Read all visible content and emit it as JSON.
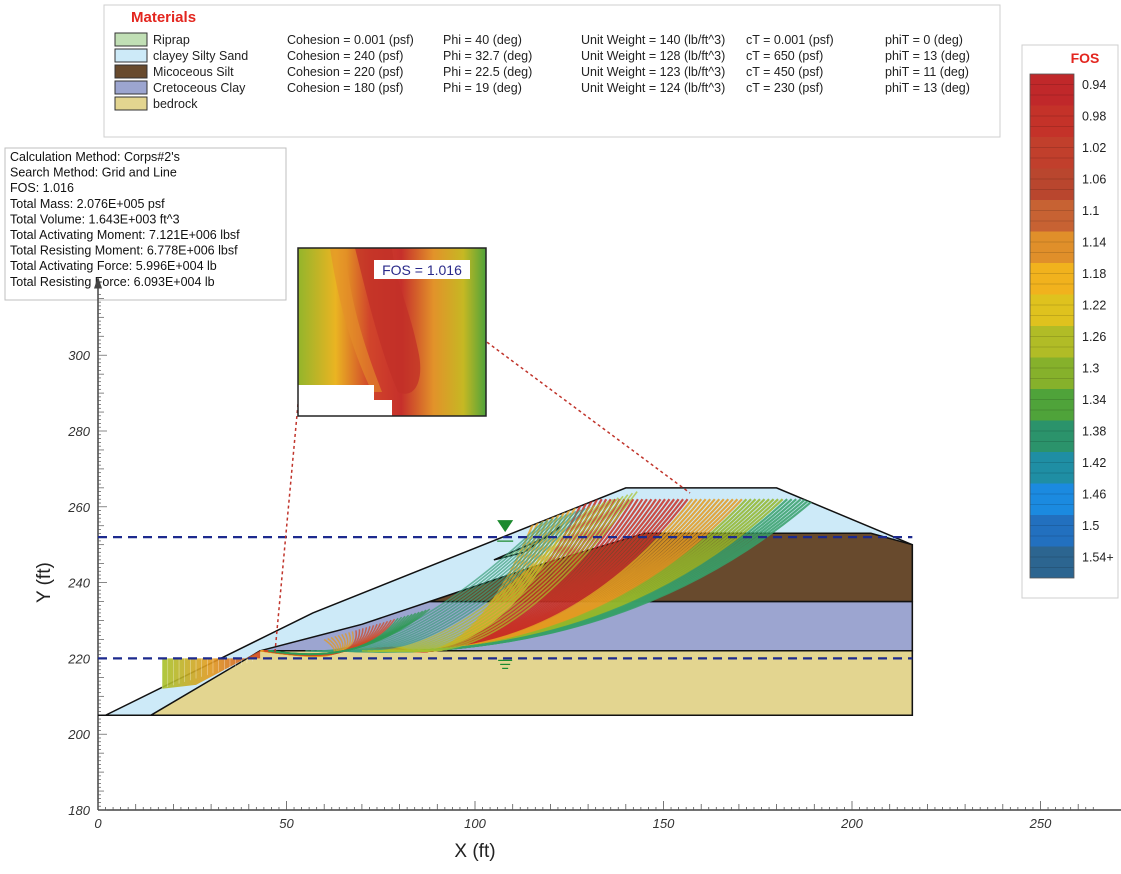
{
  "materials": {
    "title": "Materials",
    "items": [
      {
        "name": "Riprap",
        "color": "#c1dfb5",
        "cohesion": "Cohesion = 0.001 (psf)",
        "phi": "Phi = 40 (deg)",
        "unit_weight": "Unit Weight = 140 (lb/ft^3)",
        "ct": "cT = 0.001 (psf)",
        "phit": "phiT = 0 (deg)"
      },
      {
        "name": "clayey Silty Sand",
        "color": "#cdeaf8",
        "cohesion": "Cohesion = 240 (psf)",
        "phi": "Phi = 32.7 (deg)",
        "unit_weight": "Unit Weight = 128 (lb/ft^3)",
        "ct": "cT = 650 (psf)",
        "phit": "phiT = 13 (deg)"
      },
      {
        "name": "Micoceous Silt",
        "color": "#684a2d",
        "cohesion": "Cohesion = 220 (psf)",
        "phi": "Phi = 22.5 (deg)",
        "unit_weight": "Unit Weight = 123 (lb/ft^3)",
        "ct": "cT = 450 (psf)",
        "phit": "phiT = 11 (deg)"
      },
      {
        "name": "Cretoceous Clay",
        "color": "#9ca5d0",
        "cohesion": "Cohesion = 180 (psf)",
        "phi": "Phi = 19 (deg)",
        "unit_weight": "Unit Weight = 124 (lb/ft^3)",
        "ct": "cT = 230 (psf)",
        "phit": "phiT = 13 (deg)"
      },
      {
        "name": "bedrock",
        "color": "#e3d590"
      }
    ]
  },
  "info": {
    "lines": [
      "Calculation Method: Corps#2's",
      "Search Method: Grid and Line",
      "FOS: 1.016",
      "Total Mass: 2.076E+005 psf",
      "Total Volume: 1.643E+003 ft^3",
      "Total Activating Moment: 7.121E+006 lbsf",
      "Total Resisting Moment: 6.778E+006 lbsf",
      "Total Activating Force: 5.996E+004 lb",
      "Total Resisting Force: 6.093E+004 lb"
    ]
  },
  "zoom_label": "FOS = 1.016",
  "fos_legend": {
    "title": "FOS",
    "labels": [
      "0.94",
      "0.98",
      "1.02",
      "1.06",
      "1.1",
      "1.14",
      "1.18",
      "1.22",
      "1.26",
      "1.3",
      "1.34",
      "1.38",
      "1.42",
      "1.46",
      "1.5",
      "1.54+"
    ],
    "colors": [
      "#c0282a",
      "#c43229",
      "#c13f2c",
      "#b9462e",
      "#c76233",
      "#e08f2a",
      "#f1b21d",
      "#dfc21e",
      "#b1bc26",
      "#86b12b",
      "#4fa33a",
      "#2b936b",
      "#1f8ea4",
      "#1b8ae0",
      "#2270bf",
      "#2c6590"
    ]
  },
  "axes": {
    "xlabel": "X (ft)",
    "ylabel": "Y (ft)",
    "xticks": [
      0,
      50,
      100,
      150,
      200,
      250
    ],
    "yticks": [
      180,
      200,
      220,
      240,
      260,
      280,
      300
    ],
    "xlim": [
      0,
      265
    ],
    "ylim": [
      180,
      316
    ]
  },
  "water_levels": [
    252,
    220
  ]
}
